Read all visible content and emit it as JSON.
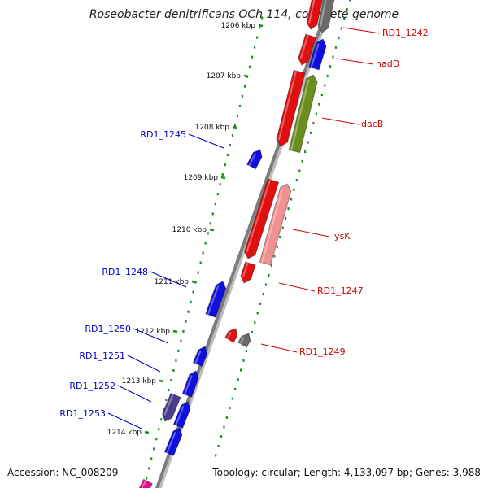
{
  "title": "Roseobacter denitrificans OCh 114, complete genome",
  "footer": {
    "accession": "Accession: NC_008209",
    "summary": "Topology: circular; Length: 4,133,097 bp; Genes: 3,988"
  },
  "colors": {
    "axis": "#8a8a8a",
    "tick": "#1f8a1f",
    "plus_label": "#cc0000",
    "minus_label": "#0000cc"
  },
  "kbp_ticks": [
    "1206 kbp",
    "1207 kbp",
    "1208 kbp",
    "1209 kbp",
    "1210 kbp",
    "1211 kbp",
    "1212 kbp",
    "1213 kbp",
    "1214 kbp"
  ],
  "plus_labels": [
    "RD1_1242",
    "nadD",
    "dacB",
    "lysK",
    "RD1_1247",
    "RD1_1249"
  ],
  "minus_labels": [
    "RD1_1245",
    "RD1_1248",
    "RD1_1250",
    "RD1_1251",
    "RD1_1252",
    "RD1_1253"
  ]
}
